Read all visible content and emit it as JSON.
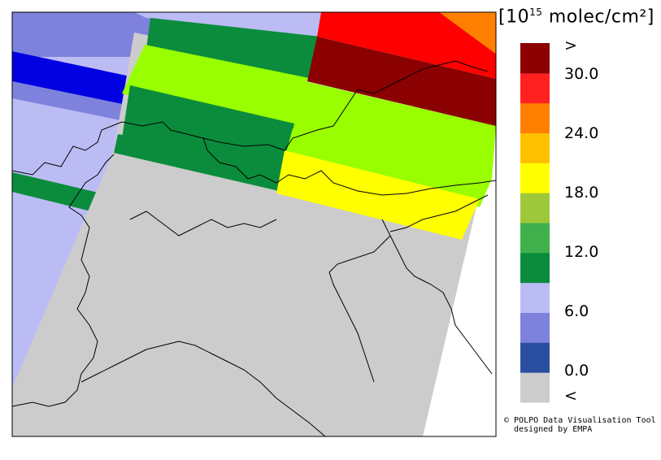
{
  "colorbar": {
    "unit_prefix": "[10",
    "unit_exp": "15",
    "unit_suffix": " molec/cm²]",
    "colors": [
      "#cccccc",
      "#2b4fa0",
      "#7f82dd",
      "#bcbcf5",
      "#0a8c3c",
      "#3fb04c",
      "#9ec83a",
      "#ffff00",
      "#ffc000",
      "#ff8000",
      "#ff2020",
      "#8b0000"
    ],
    "labels": [
      ">",
      "30.0",
      "24.0",
      "18.0",
      "12.0",
      "6.0",
      "0.0",
      "<"
    ]
  },
  "credits": {
    "line1": "© POLPO Data Visualisation Tool",
    "line2": "designed by EMPA"
  }
}
